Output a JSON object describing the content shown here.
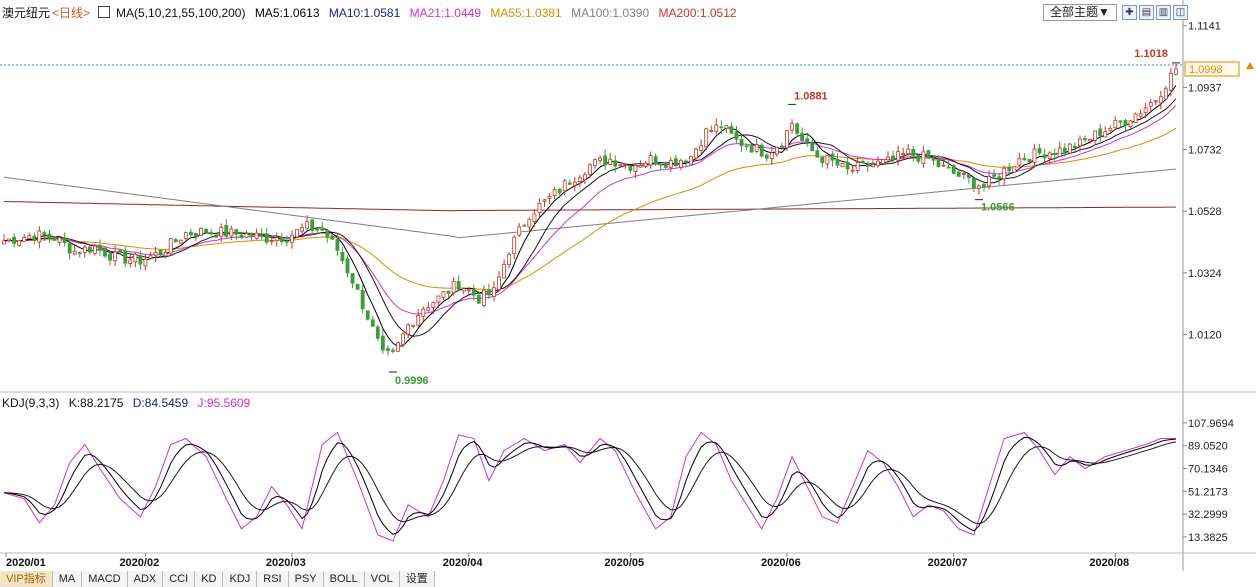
{
  "header": {
    "symbol": "澳元纽元",
    "period": "<日线>",
    "ma_params": "MA(5,10,21,55,100,200)",
    "ma5": "MA5:1.0613",
    "ma10": "MA10:1.0581",
    "ma21": "MA21:1.0449",
    "ma55": "MA55:1.0381",
    "ma100": "MA100:1.0390",
    "ma200": "MA200:1.0512",
    "theme_button": "全部主题▼"
  },
  "colors": {
    "up": "#c0392b",
    "down": "#3f9b3f",
    "ma5": "#000000",
    "ma10": "#1a1a1a",
    "ma21": "#cc33cc",
    "ma55": "#e08a00",
    "ma100": "#808080",
    "ma200": "#8b2a2a"
  },
  "indicator": {
    "name": "KDJ(9,3,3)",
    "k": "K:88.2175",
    "d": "D:84.5459",
    "j": "J:95.5609"
  },
  "tabs": [
    "VIP指标",
    "MA",
    "MACD",
    "ADX",
    "CCI",
    "KD",
    "KDJ",
    "RSI",
    "PSY",
    "BOLL",
    "VOL",
    "设置"
  ],
  "chart_data": {
    "type": "candlestick",
    "price_axis": {
      "ticks": [
        "1.1141",
        "1.0937",
        "1.0732",
        "1.0528",
        "1.0324",
        "1.0120"
      ],
      "tick_values": [
        1.1141,
        1.0937,
        1.0732,
        1.0528,
        1.0324,
        1.012
      ],
      "last_price": "1.0998",
      "ylim": [
        0.993,
        1.116
      ]
    },
    "annotations": {
      "high": "1.1018",
      "high_value": 1.1018,
      "peak_may": "1.0881",
      "peak_may_value": 1.0881,
      "low_march": "0.9996",
      "low_march_value": 0.9996,
      "low_july": "1.0566",
      "low_july_value": 1.0566
    },
    "time_axis": [
      "2020/01",
      "2020/02",
      "2020/03",
      "2020/04",
      "2020/05",
      "2020/06",
      "2020/07",
      "2020/08"
    ],
    "kdj_axis": {
      "ticks": [
        "107.9694",
        "89.0520",
        "70.1346",
        "51.2173",
        "32.2999",
        "13.3825"
      ],
      "tick_values": [
        107.9694,
        89.052,
        70.1346,
        51.2173,
        32.2999,
        13.3825
      ],
      "ylim": [
        0,
        117
      ]
    },
    "anchors": [
      [
        0,
        1.043
      ],
      [
        6,
        1.045
      ],
      [
        10,
        1.044
      ],
      [
        14,
        1.0395
      ],
      [
        18,
        1.041
      ],
      [
        22,
        1.0375
      ],
      [
        27,
        1.0365
      ],
      [
        31,
        1.0392
      ],
      [
        36,
        1.0455
      ],
      [
        40,
        1.0462
      ],
      [
        44,
        1.0455
      ],
      [
        48,
        1.045
      ],
      [
        52,
        1.044
      ],
      [
        56,
        1.0445
      ],
      [
        60,
        1.0475
      ],
      [
        63,
        1.0465
      ],
      [
        66,
        1.04
      ],
      [
        69,
        1.03
      ],
      [
        72,
        1.018
      ],
      [
        75,
        1.005
      ],
      [
        77,
        1.005
      ],
      [
        80,
        1.015
      ],
      [
        83,
        1.021
      ],
      [
        86,
        1.024
      ],
      [
        90,
        1.029
      ],
      [
        94,
        1.024
      ],
      [
        97,
        1.026
      ],
      [
        100,
        1.04
      ],
      [
        104,
        1.052
      ],
      [
        108,
        1.057
      ],
      [
        112,
        1.063
      ],
      [
        116,
        1.068
      ],
      [
        120,
        1.07
      ],
      [
        124,
        1.068
      ],
      [
        128,
        1.07
      ],
      [
        132,
        1.069
      ],
      [
        136,
        1.071
      ],
      [
        139,
        1.079
      ],
      [
        142,
        1.081
      ],
      [
        145,
        1.076
      ],
      [
        148,
        1.074
      ],
      [
        151,
        1.072
      ],
      [
        154,
        1.076
      ],
      [
        156,
        1.082
      ],
      [
        158,
        1.076
      ],
      [
        161,
        1.071
      ],
      [
        164,
        1.069
      ],
      [
        167,
        1.066
      ],
      [
        171,
        1.068
      ],
      [
        175,
        1.069
      ],
      [
        179,
        1.072
      ],
      [
        183,
        1.07
      ],
      [
        187,
        1.066
      ],
      [
        191,
        1.063
      ],
      [
        194,
        1.061
      ],
      [
        197,
        1.065
      ],
      [
        201,
        1.07
      ],
      [
        205,
        1.072
      ],
      [
        209,
        1.073
      ],
      [
        213,
        1.075
      ],
      [
        217,
        1.079
      ],
      [
        221,
        1.082
      ],
      [
        225,
        1.086
      ],
      [
        228,
        1.09
      ],
      [
        230,
        1.095
      ],
      [
        232,
        1.0998
      ]
    ],
    "kdj_anchors": [
      [
        0,
        50
      ],
      [
        4,
        45
      ],
      [
        7,
        25
      ],
      [
        10,
        40
      ],
      [
        13,
        75
      ],
      [
        16,
        90
      ],
      [
        19,
        70
      ],
      [
        23,
        45
      ],
      [
        27,
        30
      ],
      [
        30,
        55
      ],
      [
        33,
        90
      ],
      [
        36,
        95
      ],
      [
        40,
        80
      ],
      [
        44,
        45
      ],
      [
        47,
        20
      ],
      [
        50,
        30
      ],
      [
        53,
        55
      ],
      [
        56,
        40
      ],
      [
        59,
        20
      ],
      [
        63,
        90
      ],
      [
        66,
        100
      ],
      [
        70,
        60
      ],
      [
        74,
        15
      ],
      [
        77,
        10
      ],
      [
        80,
        40
      ],
      [
        84,
        30
      ],
      [
        87,
        60
      ],
      [
        90,
        98
      ],
      [
        93,
        95
      ],
      [
        96,
        60
      ],
      [
        99,
        85
      ],
      [
        103,
        95
      ],
      [
        107,
        85
      ],
      [
        111,
        90
      ],
      [
        114,
        75
      ],
      [
        118,
        95
      ],
      [
        121,
        85
      ],
      [
        125,
        50
      ],
      [
        129,
        20
      ],
      [
        132,
        30
      ],
      [
        135,
        80
      ],
      [
        138,
        100
      ],
      [
        141,
        90
      ],
      [
        144,
        60
      ],
      [
        147,
        40
      ],
      [
        150,
        20
      ],
      [
        153,
        45
      ],
      [
        156,
        80
      ],
      [
        159,
        55
      ],
      [
        162,
        30
      ],
      [
        165,
        25
      ],
      [
        168,
        55
      ],
      [
        171,
        85
      ],
      [
        174,
        75
      ],
      [
        177,
        55
      ],
      [
        180,
        30
      ],
      [
        183,
        40
      ],
      [
        186,
        35
      ],
      [
        189,
        20
      ],
      [
        192,
        15
      ],
      [
        195,
        55
      ],
      [
        198,
        95
      ],
      [
        202,
        100
      ],
      [
        205,
        85
      ],
      [
        208,
        65
      ],
      [
        211,
        80
      ],
      [
        214,
        70
      ],
      [
        218,
        80
      ],
      [
        222,
        85
      ],
      [
        226,
        90
      ],
      [
        229,
        95
      ],
      [
        232,
        95
      ]
    ]
  }
}
